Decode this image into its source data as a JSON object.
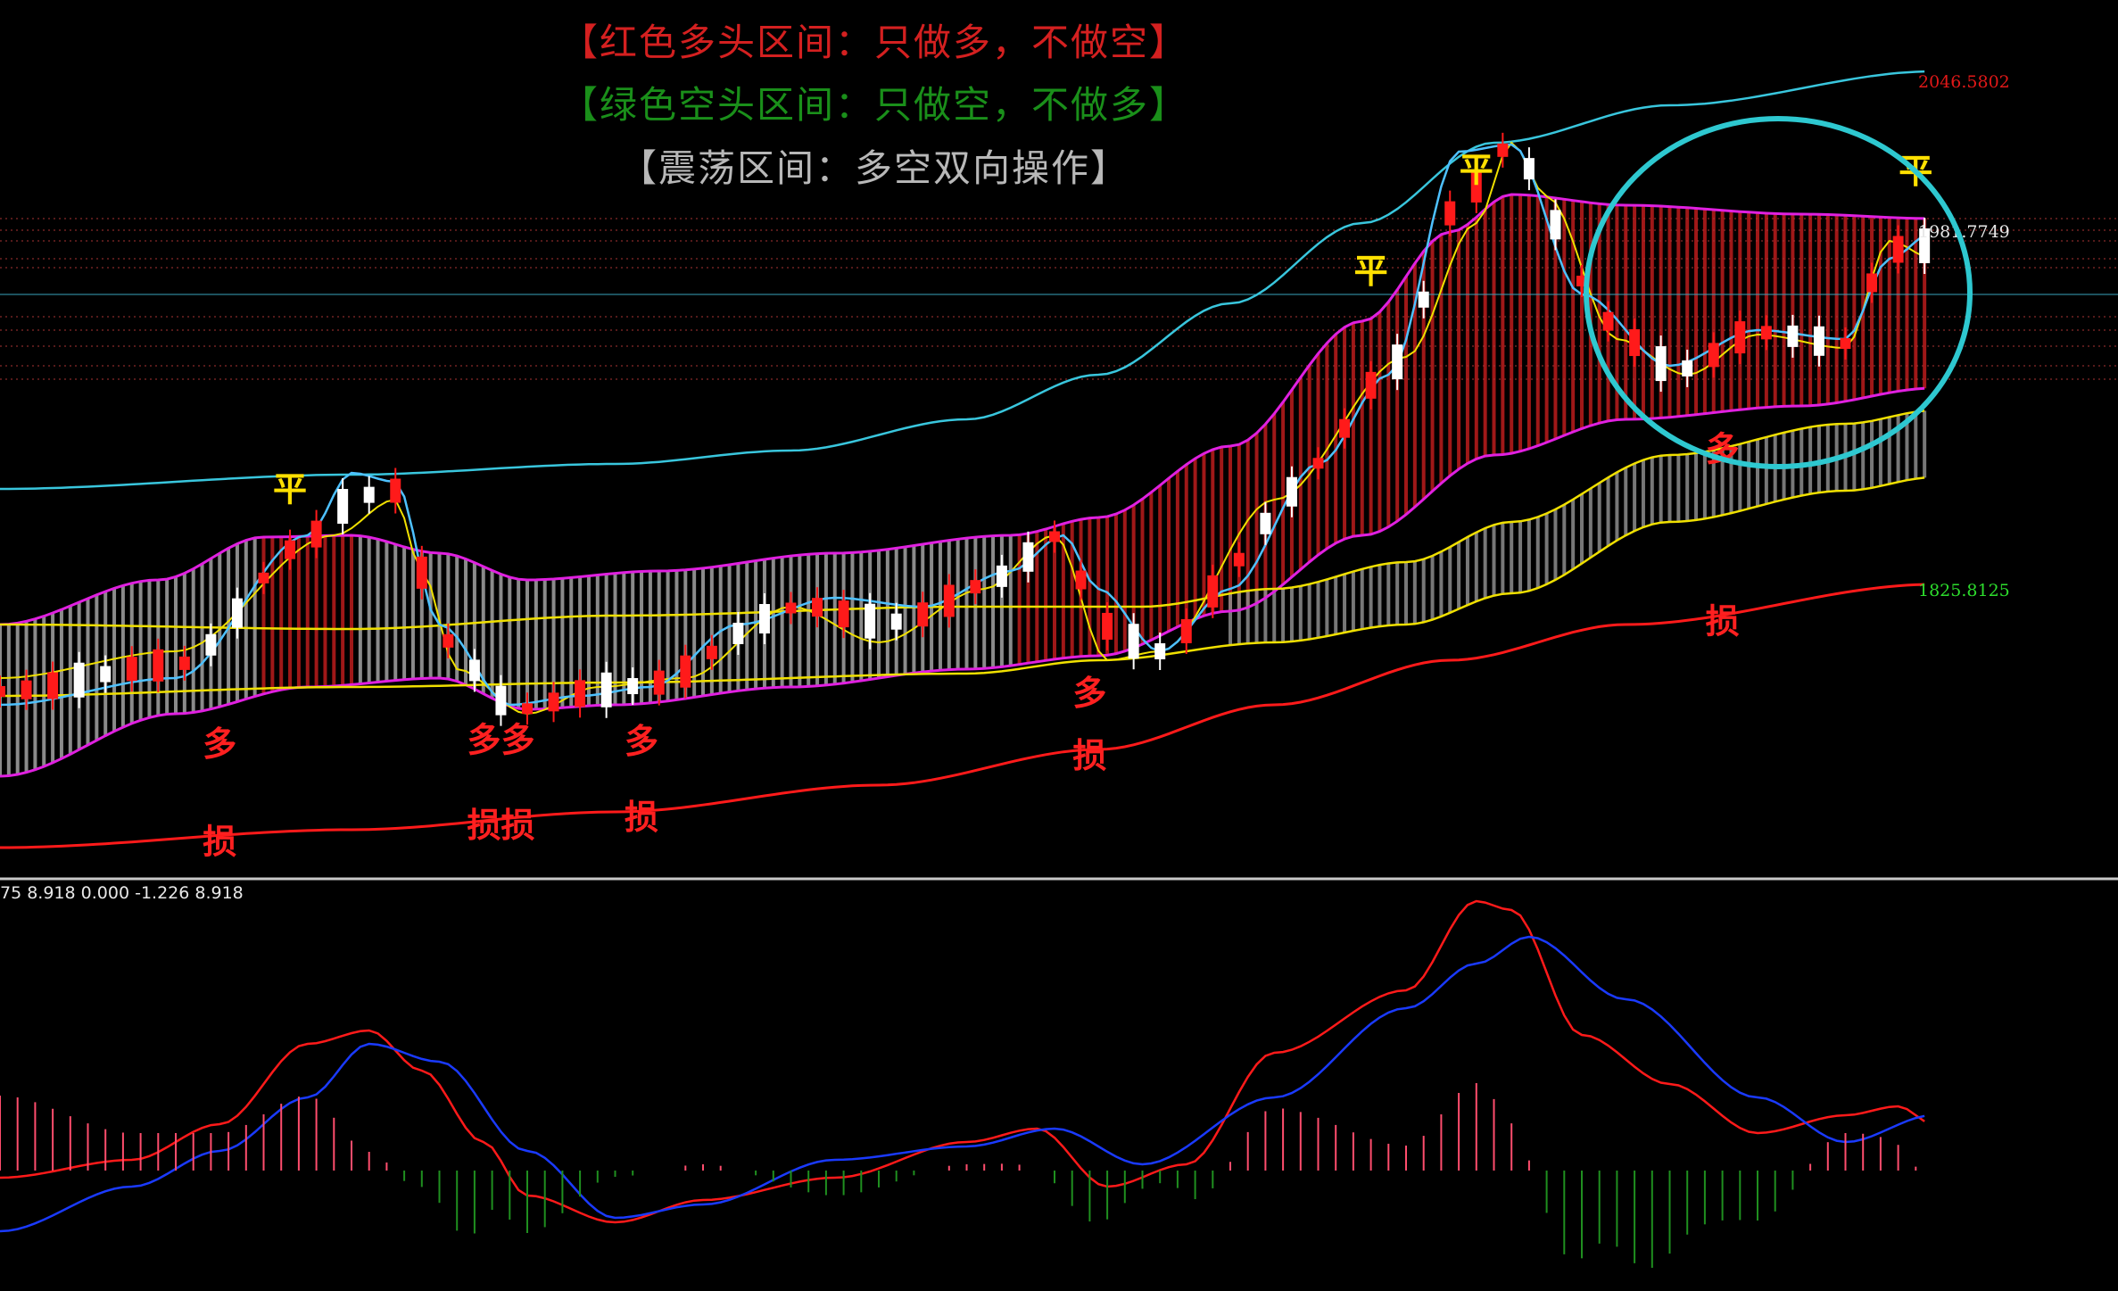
{
  "legend": {
    "bull": "【红色多头区间：只做多，不做空】",
    "bear": "【绿色空头区间：只做空，不做多】",
    "range": "【震荡区间：多空双向操作】"
  },
  "colors": {
    "bull": "#d42020",
    "bear": "#1a8f1a",
    "range": "#b8b8b8",
    "upper_band": "#39c6dd",
    "lower_band": "#ff1a1a",
    "channel_edge": "#e020e0",
    "yellow": "#f0e000",
    "circle": "#2ec8d0",
    "candle_up": "#ff1a1a",
    "candle_down": "#ffffff"
  },
  "macd_readout": "75 8.918 0.000 -1.226 8.918",
  "chart_data": [
    {
      "type": "candlestick",
      "panel": "main",
      "price_labels": {
        "upper": "2046.5802",
        "mid": "1981.7749",
        "lower": "1825.8125"
      },
      "price_levels": [
        2046.5802,
        1981.7749,
        1825.8125
      ],
      "signals": [
        {
          "text": "多",
          "bar": 25,
          "color": "red"
        },
        {
          "text": "多多",
          "bar": 57,
          "color": "red"
        },
        {
          "text": "多",
          "bar": 73,
          "color": "red"
        },
        {
          "text": "多",
          "bar": 124,
          "color": "red"
        },
        {
          "text": "多",
          "bar": 196,
          "color": "red"
        },
        {
          "text": "平",
          "bar": 33,
          "color": "yellow"
        },
        {
          "text": "平",
          "bar": 156,
          "color": "yellow"
        },
        {
          "text": "平",
          "bar": 168,
          "color": "yellow"
        },
        {
          "text": "平",
          "bar": 218,
          "color": "yellow"
        },
        {
          "text": "损",
          "bar": 124,
          "color": "red"
        },
        {
          "text": "损",
          "bar": 196,
          "color": "red"
        },
        {
          "text": "损",
          "bar": 25,
          "color": "red"
        },
        {
          "text": "损损",
          "bar": 57,
          "color": "red"
        },
        {
          "text": "损",
          "bar": 73,
          "color": "red"
        }
      ]
    },
    {
      "type": "macd",
      "panel": "lower",
      "series": [
        {
          "values_note": "",
          "values": []
        }
      ]
    }
  ]
}
